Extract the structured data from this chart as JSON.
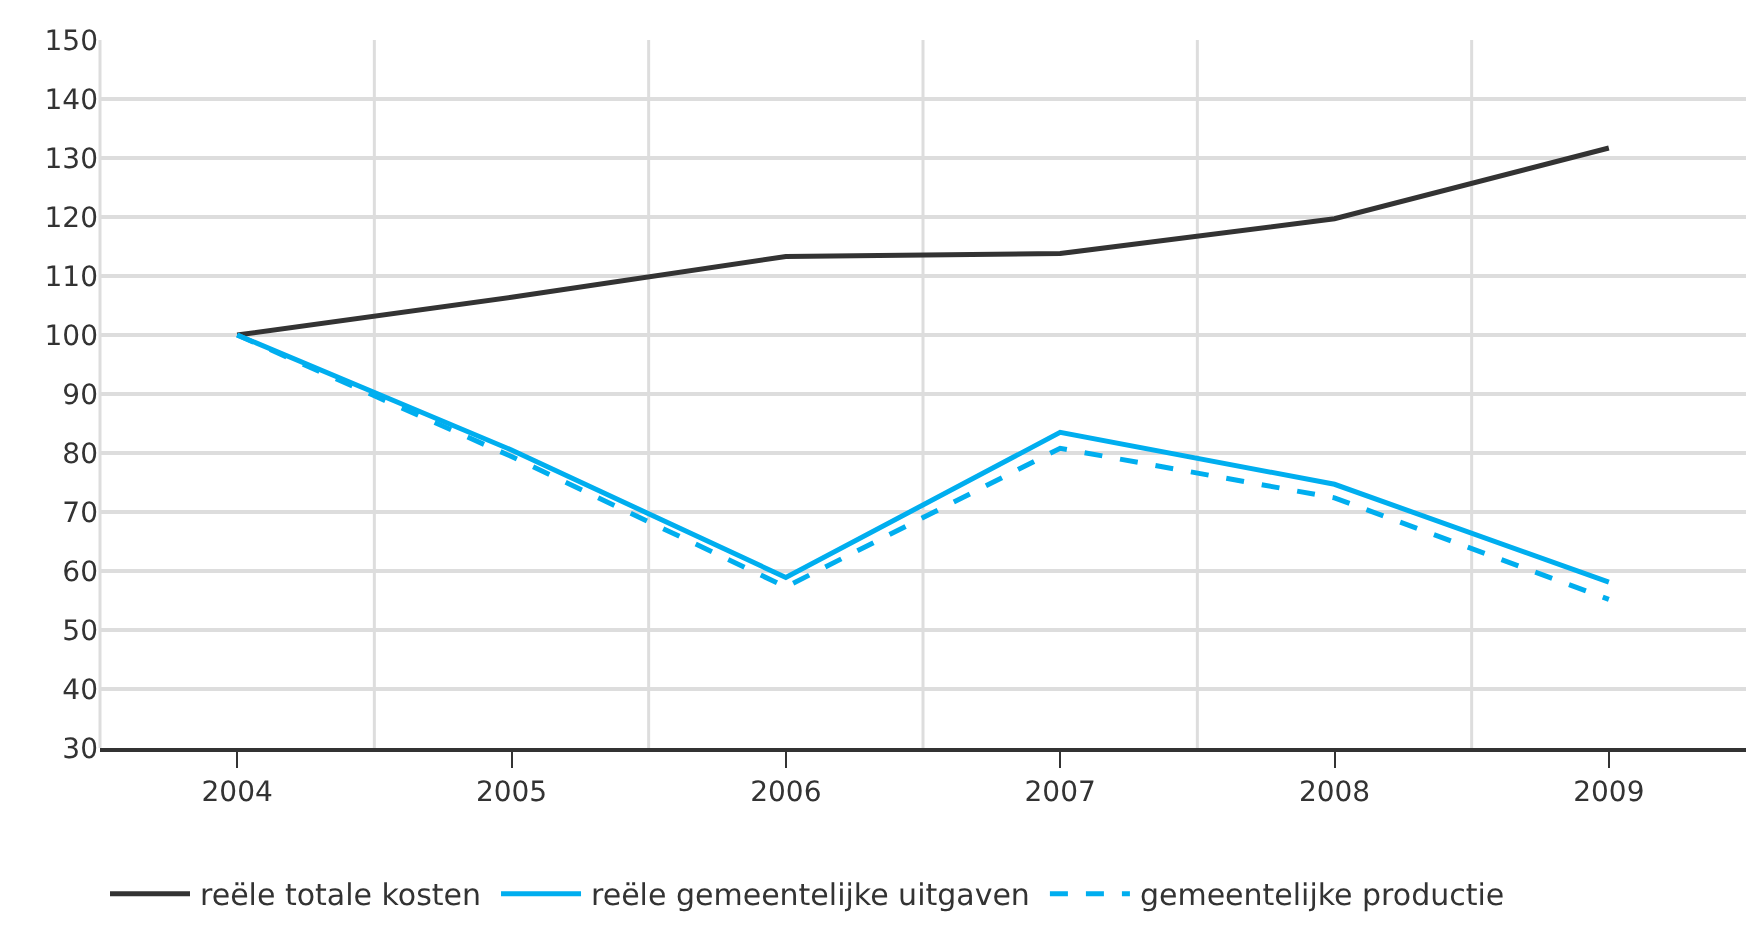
{
  "chart_data": {
    "type": "line",
    "categories": [
      "2004",
      "2005",
      "2006",
      "2007",
      "2008",
      "2009"
    ],
    "series": [
      {
        "name": "reële totale kosten",
        "color": "#333333",
        "line_style": "solid",
        "values": [
          100,
          106.4,
          113.3,
          113.8,
          119.7,
          131.7
        ]
      },
      {
        "name": "reële gemeentelijke uitgaven",
        "color": "#00aeef",
        "line_style": "solid",
        "values": [
          100,
          80.5,
          58.9,
          83.5,
          74.7,
          58.1
        ]
      },
      {
        "name": "gemeentelijke productie",
        "color": "#00aeef",
        "line_style": "dashed",
        "values": [
          100,
          79.4,
          57.3,
          80.8,
          72.4,
          55.2
        ]
      }
    ],
    "ylim": [
      30,
      150
    ],
    "yticks": [
      30,
      40,
      50,
      60,
      70,
      80,
      90,
      100,
      110,
      120,
      130,
      140,
      150
    ],
    "grid": true,
    "legend": "bottom left",
    "marker": "none"
  }
}
